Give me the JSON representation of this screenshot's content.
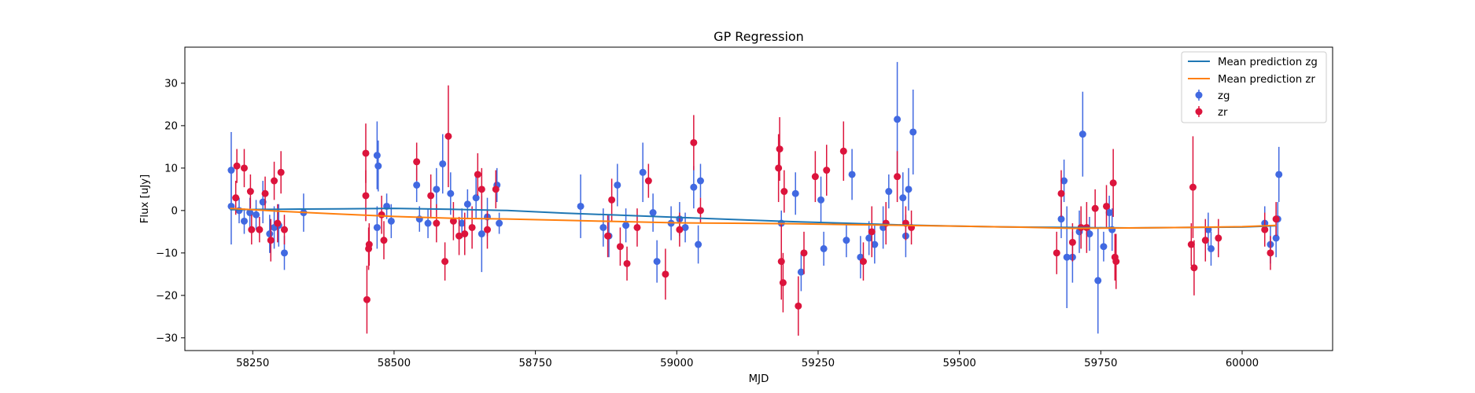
{
  "chart_data": {
    "type": "scatter",
    "title": "GP Regression",
    "xlabel": "MJD",
    "ylabel": "Flux [uJy]",
    "xlim": [
      58130,
      60160
    ],
    "ylim": [
      -33,
      38.5
    ],
    "xticks": [
      58250,
      58500,
      58750,
      59000,
      59250,
      59500,
      59750,
      60000
    ],
    "yticks": [
      -30,
      -20,
      -10,
      0,
      10,
      20,
      30
    ],
    "grid": false,
    "legend_position": "top-right",
    "lines": [
      {
        "name": "Mean prediction zg",
        "color": "#1f77b4",
        "x": [
          58210,
          58300,
          58400,
          58500,
          58600,
          58700,
          58800,
          58900,
          59000,
          59100,
          59200,
          59300,
          59400,
          59500,
          59600,
          59700,
          59800,
          59900,
          60000,
          60060
        ],
        "y": [
          0.2,
          0.3,
          0.4,
          0.5,
          0.3,
          0.0,
          -0.6,
          -1.1,
          -1.6,
          -2.1,
          -2.6,
          -3.0,
          -3.4,
          -3.7,
          -3.9,
          -4.0,
          -4.1,
          -4.0,
          -3.9,
          -3.6
        ]
      },
      {
        "name": "Mean prediction zr",
        "color": "#ff7f0e",
        "x": [
          58210,
          58300,
          58400,
          58500,
          58600,
          58700,
          58800,
          58900,
          59000,
          59100,
          59200,
          59300,
          59400,
          59500,
          59600,
          59700,
          59800,
          59900,
          60000,
          60060
        ],
        "y": [
          0.5,
          -0.2,
          -0.8,
          -1.4,
          -1.8,
          -2.0,
          -2.3,
          -2.6,
          -2.9,
          -3.0,
          -3.1,
          -3.3,
          -3.5,
          -3.7,
          -3.9,
          -4.2,
          -4.1,
          -4.0,
          -3.8,
          -3.5
        ]
      }
    ],
    "series": [
      {
        "name": "zg",
        "color": "#4169e1",
        "points": [
          [
            58212,
            1.0,
            9.0
          ],
          [
            58212,
            9.5,
            9.0
          ],
          [
            58226,
            0.0,
            3.0
          ],
          [
            58235,
            -2.5,
            3.0
          ],
          [
            58245,
            -0.5,
            3.5
          ],
          [
            58256,
            -1.0,
            3.5
          ],
          [
            58268,
            2.0,
            5.0
          ],
          [
            58280,
            -5.5,
            4.5
          ],
          [
            58288,
            -4.0,
            5.0
          ],
          [
            58296,
            -3.5,
            5.0
          ],
          [
            58306,
            -10.0,
            4.0
          ],
          [
            58340,
            -0.5,
            4.5
          ],
          [
            58470,
            -4.0,
            5.0
          ],
          [
            58470,
            13.0,
            8.0
          ],
          [
            58472,
            10.5,
            6.0
          ],
          [
            58487,
            1.0,
            3.0
          ],
          [
            58495,
            -2.5,
            4.0
          ],
          [
            58540,
            6.0,
            4.0
          ],
          [
            58545,
            -2.0,
            3.0
          ],
          [
            58560,
            -3.0,
            3.5
          ],
          [
            58575,
            5.0,
            5.0
          ],
          [
            58586,
            11.0,
            7.0
          ],
          [
            58600,
            4.0,
            5.0
          ],
          [
            58620,
            -3.0,
            3.5
          ],
          [
            58630,
            1.5,
            3.5
          ],
          [
            58645,
            3.0,
            5.0
          ],
          [
            58655,
            -5.5,
            9.0
          ],
          [
            58665,
            -1.5,
            4.5
          ],
          [
            58682,
            6.0,
            4.0
          ],
          [
            58686,
            -3.0,
            2.5
          ],
          [
            58830,
            1.0,
            7.5
          ],
          [
            58870,
            -4.0,
            4.5
          ],
          [
            58880,
            -6.0,
            5.0
          ],
          [
            58895,
            6.0,
            5.0
          ],
          [
            58910,
            -3.5,
            4.0
          ],
          [
            58940,
            9.0,
            7.0
          ],
          [
            58958,
            -0.5,
            4.5
          ],
          [
            58965,
            -12.0,
            5.0
          ],
          [
            58990,
            -3.0,
            4.0
          ],
          [
            59005,
            -2.0,
            4.0
          ],
          [
            59015,
            -4.0,
            3.5
          ],
          [
            59030,
            5.5,
            5.0
          ],
          [
            59038,
            -8.0,
            4.5
          ],
          [
            59042,
            7.0,
            4.0
          ],
          [
            59185,
            -3.0,
            3.0
          ],
          [
            59210,
            4.0,
            5.0
          ],
          [
            59220,
            -14.5,
            4.5
          ],
          [
            59255,
            2.5,
            5.5
          ],
          [
            59260,
            -9.0,
            4.0
          ],
          [
            59300,
            -7.0,
            4.0
          ],
          [
            59310,
            8.5,
            6.0
          ],
          [
            59325,
            -11.0,
            5.0
          ],
          [
            59340,
            -6.5,
            4.0
          ],
          [
            59350,
            -8.0,
            4.5
          ],
          [
            59365,
            -4.0,
            5.0
          ],
          [
            59375,
            4.5,
            4.0
          ],
          [
            59390,
            21.5,
            13.5
          ],
          [
            59400,
            3.0,
            6.0
          ],
          [
            59405,
            -6.0,
            5.0
          ],
          [
            59410,
            5.0,
            5.0
          ],
          [
            59418,
            18.5,
            10.0
          ],
          [
            59680,
            -2.0,
            4.5
          ],
          [
            59685,
            7.0,
            5.0
          ],
          [
            59690,
            -11.0,
            12.0
          ],
          [
            59700,
            -11.0,
            6.0
          ],
          [
            59712,
            -5.0,
            5.0
          ],
          [
            59718,
            18.0,
            10.0
          ],
          [
            59730,
            -5.5,
            4.0
          ],
          [
            59745,
            -16.5,
            12.5
          ],
          [
            59755,
            -8.5,
            3.5
          ],
          [
            59765,
            -0.5,
            4.0
          ],
          [
            59770,
            -4.5,
            5.0
          ],
          [
            59940,
            -4.5,
            4.0
          ],
          [
            59945,
            -9.0,
            4.0
          ],
          [
            60040,
            -3.0,
            4.0
          ],
          [
            60050,
            -8.0,
            4.5
          ],
          [
            60060,
            -6.5,
            4.5
          ],
          [
            60065,
            8.5,
            6.5
          ],
          [
            60063,
            -2.0,
            4.0
          ]
        ]
      },
      {
        "name": "zr",
        "color": "#dc143c",
        "points": [
          [
            58220,
            3.0,
            4.0
          ],
          [
            58222,
            10.5,
            4.0
          ],
          [
            58235,
            10.0,
            4.5
          ],
          [
            58246,
            4.5,
            4.0
          ],
          [
            58248,
            -4.5,
            3.5
          ],
          [
            58262,
            -4.5,
            3.0
          ],
          [
            58272,
            4.0,
            4.0
          ],
          [
            58282,
            -7.0,
            5.0
          ],
          [
            58288,
            7.0,
            4.5
          ],
          [
            58294,
            -3.0,
            4.5
          ],
          [
            58300,
            9.0,
            5.0
          ],
          [
            58306,
            -4.5,
            3.5
          ],
          [
            58450,
            13.5,
            7.0
          ],
          [
            58450,
            3.5,
            6.0
          ],
          [
            58452,
            -21.0,
            8.0
          ],
          [
            58455,
            -9.0,
            5.0
          ],
          [
            58456,
            -8.0,
            5.0
          ],
          [
            58478,
            -1.0,
            4.5
          ],
          [
            58482,
            -7.0,
            4.5
          ],
          [
            58540,
            11.5,
            4.5
          ],
          [
            58565,
            3.5,
            5.0
          ],
          [
            58575,
            -3.0,
            4.5
          ],
          [
            58590,
            -12.0,
            4.5
          ],
          [
            58596,
            17.5,
            12.0
          ],
          [
            58605,
            -2.5,
            4.5
          ],
          [
            58615,
            -6.0,
            4.5
          ],
          [
            58625,
            -5.5,
            5.0
          ],
          [
            58638,
            -4.0,
            5.0
          ],
          [
            58648,
            8.5,
            5.0
          ],
          [
            58655,
            5.0,
            5.0
          ],
          [
            58665,
            -4.5,
            4.5
          ],
          [
            58680,
            5.0,
            4.5
          ],
          [
            58878,
            -6.0,
            5.0
          ],
          [
            58885,
            2.5,
            5.0
          ],
          [
            58900,
            -8.5,
            4.5
          ],
          [
            58912,
            -12.5,
            4.0
          ],
          [
            58930,
            -4.0,
            4.5
          ],
          [
            58950,
            7.0,
            4.0
          ],
          [
            58980,
            -15.0,
            6.0
          ],
          [
            59005,
            -4.5,
            4.0
          ],
          [
            59030,
            16.0,
            6.5
          ],
          [
            59042,
            0.0,
            3.0
          ],
          [
            59180,
            10.0,
            8.0
          ],
          [
            59182,
            14.5,
            7.5
          ],
          [
            59185,
            -12.0,
            9.0
          ],
          [
            59188,
            -17.0,
            7.0
          ],
          [
            59190,
            4.5,
            5.0
          ],
          [
            59215,
            -22.5,
            7.0
          ],
          [
            59225,
            -10.0,
            5.0
          ],
          [
            59245,
            8.0,
            6.0
          ],
          [
            59265,
            9.5,
            6.0
          ],
          [
            59295,
            14.0,
            7.0
          ],
          [
            59330,
            -12.0,
            4.5
          ],
          [
            59345,
            -5.0,
            6.0
          ],
          [
            59370,
            -3.0,
            5.0
          ],
          [
            59390,
            8.0,
            6.0
          ],
          [
            59405,
            -3.0,
            4.0
          ],
          [
            59415,
            -4.0,
            4.0
          ],
          [
            59672,
            -10.0,
            5.0
          ],
          [
            59680,
            4.0,
            5.5
          ],
          [
            59700,
            -7.5,
            4.5
          ],
          [
            59715,
            -4.0,
            5.0
          ],
          [
            59725,
            -4.0,
            6.0
          ],
          [
            59740,
            0.5,
            4.5
          ],
          [
            59760,
            1.0,
            5.0
          ],
          [
            59772,
            6.5,
            8.0
          ],
          [
            59775,
            -11.0,
            5.5
          ],
          [
            59777,
            -12.0,
            6.5
          ],
          [
            59910,
            -8.0,
            5.0
          ],
          [
            59913,
            5.5,
            12.0
          ],
          [
            59915,
            -13.5,
            6.5
          ],
          [
            59935,
            -7.0,
            5.0
          ],
          [
            59958,
            -6.5,
            4.5
          ],
          [
            60040,
            -4.5,
            4.0
          ],
          [
            60050,
            -10.0,
            4.0
          ],
          [
            60060,
            -2.0,
            4.0
          ]
        ]
      }
    ],
    "legend": [
      {
        "label": "Mean prediction zg",
        "kind": "line",
        "color": "#1f77b4"
      },
      {
        "label": "Mean prediction zr",
        "kind": "line",
        "color": "#ff7f0e"
      },
      {
        "label": "zg",
        "kind": "errorbar",
        "color": "#4169e1"
      },
      {
        "label": "zr",
        "kind": "errorbar",
        "color": "#dc143c"
      }
    ]
  }
}
